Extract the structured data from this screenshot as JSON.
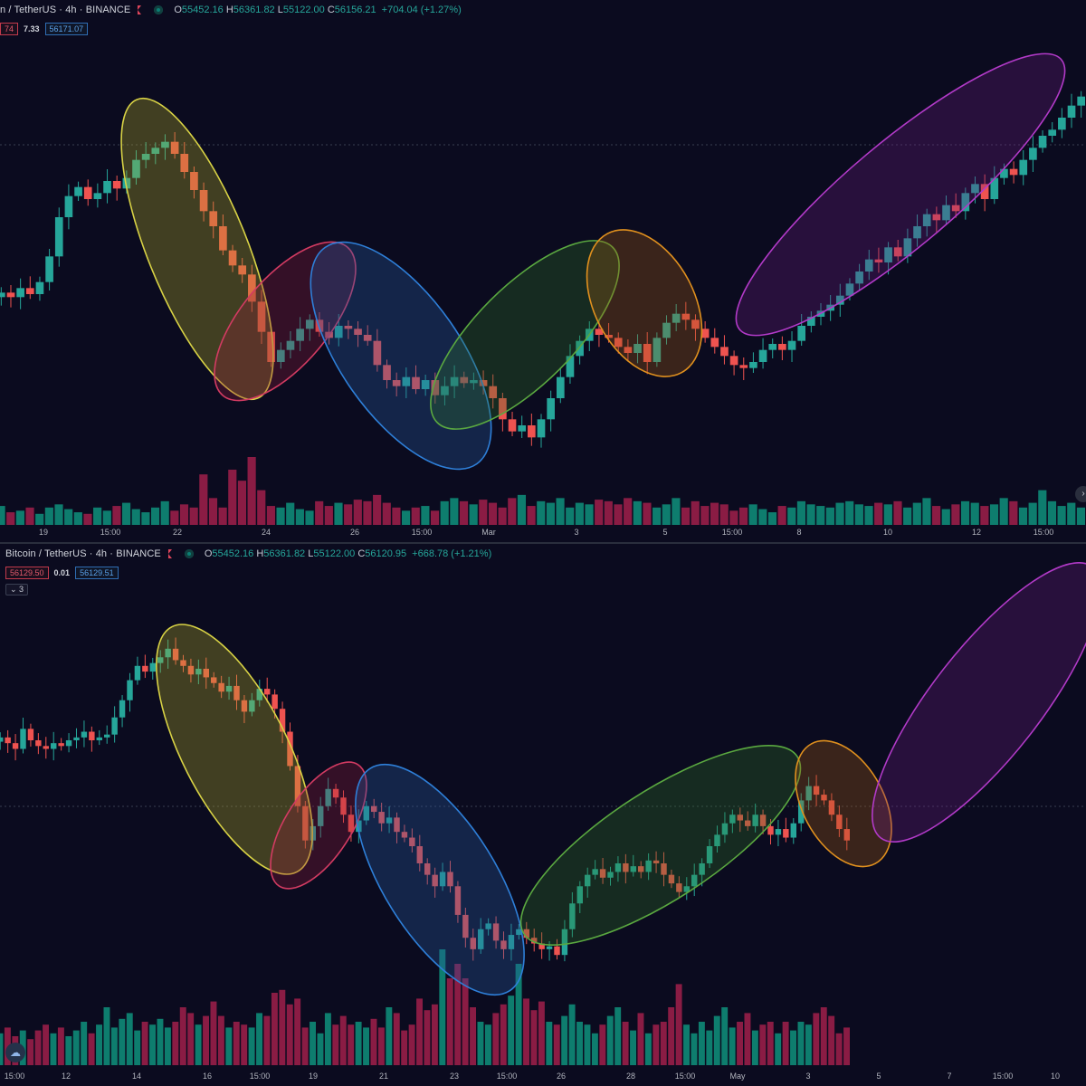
{
  "colors": {
    "up": "#26a69a",
    "down": "#ef5350",
    "vol_up": "#0e7d6e",
    "vol_down": "#8a1c44",
    "background": "#0b0b1f"
  },
  "top_pane": {
    "title": "n / TetherUS · 4h · BINANCE",
    "ohlc": {
      "o_label": "O",
      "o": "55452.16",
      "h_label": "H",
      "h": "56361.82",
      "l_label": "L",
      "l": "55122.00",
      "c_label": "C",
      "c": "56156.21",
      "change": "+704.04 (+1.27%)"
    },
    "bid": "74",
    "spread": "7.33",
    "ask": "56171.07",
    "x_ticks": [
      "19",
      "15:00",
      "22",
      "24",
      "26",
      "15:00",
      "Mar",
      "3",
      "5",
      "15:00",
      "8",
      "10",
      "12",
      "15:00"
    ]
  },
  "bottom_pane": {
    "title": "Bitcoin / TetherUS · 4h · BINANCE",
    "ohlc": {
      "o_label": "O",
      "o": "55452.16",
      "h_label": "H",
      "h": "56361.82",
      "l_label": "L",
      "l": "55122.00",
      "c_label": "C",
      "c": "56120.95",
      "change": "+668.78 (+1.21%)"
    },
    "bid": "56129.50",
    "spread": "0.01",
    "ask": "56129.51",
    "indicators_badge": "⌄ 3",
    "x_ticks": [
      "15:00",
      "12",
      "14",
      "16",
      "15:00",
      "19",
      "21",
      "23",
      "15:00",
      "26",
      "28",
      "15:00",
      "May",
      "3",
      "5",
      "7",
      "15:00",
      "10"
    ]
  },
  "icons": {
    "scroll_right": "chevron-right-icon",
    "cloud": "cloud-icon",
    "flag": "flag-icon",
    "status": "market-status-icon"
  },
  "chart_data": [
    {
      "type": "candlestick",
      "title": "n / TetherUS · 4h · BINANCE",
      "interval": "4h",
      "price_series": [
        55800,
        55650,
        55950,
        55750,
        56150,
        57000,
        58300,
        59000,
        59300,
        58900,
        59100,
        59500,
        59250,
        59600,
        60200,
        60400,
        60600,
        60800,
        60400,
        59800,
        59200,
        58500,
        58000,
        57200,
        56700,
        56400,
        55500,
        54500,
        53500,
        53900,
        54200,
        54600,
        54900,
        54500,
        54300,
        54700,
        54600,
        54400,
        54200,
        53400,
        52900,
        52700,
        53000,
        52600,
        52900,
        52400,
        52700,
        53000,
        52800,
        52900,
        52700,
        52300,
        51600,
        51200,
        51400,
        51000,
        51600,
        52300,
        53000,
        53700,
        54200,
        54600,
        54400,
        54300,
        54000,
        53800,
        54100,
        53500,
        54300,
        54800,
        55100,
        54900,
        54600,
        54300,
        54000,
        53700,
        53400,
        53300,
        53500,
        53900,
        54100,
        53900,
        54200,
        54700,
        55000,
        55200,
        55400,
        55700,
        56100,
        56500,
        56900,
        56800,
        57300,
        57000,
        57600,
        58000,
        58400,
        58200,
        58700,
        58500,
        59100,
        59400,
        58900,
        59600,
        59900,
        59700,
        60200,
        60600,
        61000,
        61200,
        61600,
        62000,
        62300
      ],
      "volume_series": [
        24,
        16,
        18,
        22,
        14,
        22,
        26,
        20,
        16,
        14,
        22,
        18,
        24,
        28,
        20,
        16,
        22,
        30,
        18,
        26,
        22,
        64,
        34,
        22,
        70,
        56,
        86,
        44,
        24,
        22,
        28,
        20,
        18,
        30,
        24,
        28,
        26,
        32,
        30,
        38,
        28,
        22,
        18,
        22,
        24,
        18,
        30,
        34,
        30,
        26,
        32,
        28,
        22,
        34,
        38,
        24,
        30,
        28,
        34,
        22,
        28,
        26,
        32,
        30,
        26,
        34,
        30,
        28,
        22,
        26,
        34,
        22,
        30,
        24,
        28,
        26,
        18,
        22,
        26,
        20,
        16,
        24,
        22,
        30,
        26,
        24,
        22,
        28,
        30,
        26,
        24,
        28,
        26,
        30,
        22,
        28,
        34,
        24,
        20,
        26,
        30,
        28,
        24,
        26,
        34,
        30,
        22,
        28,
        44,
        30,
        24,
        28,
        22
      ],
      "highlighted_moves": [
        "down",
        "up",
        "down",
        "up",
        "down",
        "up"
      ],
      "x_ticks": [
        "19",
        "15:00",
        "22",
        "24",
        "26",
        "15:00",
        "Mar",
        "3",
        "5",
        "15:00",
        "8",
        "10",
        "12",
        "15:00"
      ]
    },
    {
      "type": "candlestick",
      "title": "Bitcoin / TetherUS · 4h · BINANCE",
      "interval": "4h",
      "price_series": [
        58600,
        58400,
        58200,
        58900,
        58500,
        58300,
        58200,
        58400,
        58300,
        58500,
        58600,
        58800,
        58500,
        58600,
        58700,
        59300,
        59900,
        60600,
        61100,
        60900,
        61200,
        61400,
        61700,
        61300,
        61100,
        60800,
        61000,
        60700,
        60500,
        60200,
        60400,
        59900,
        59500,
        59900,
        60300,
        60100,
        59600,
        58800,
        57600,
        56200,
        55000,
        55500,
        56200,
        56800,
        56500,
        55900,
        55300,
        55700,
        56200,
        56000,
        55600,
        55800,
        55300,
        55100,
        54800,
        54200,
        53800,
        53400,
        53900,
        53400,
        52400,
        51600,
        51200,
        51900,
        52100,
        51500,
        51200,
        51700,
        51900,
        51600,
        51400,
        51200,
        51300,
        51000,
        51900,
        52800,
        53400,
        53800,
        54000,
        53700,
        53900,
        54200,
        53900,
        54100,
        53900,
        54300,
        54200,
        53800,
        53500,
        53200,
        53400,
        53800,
        54200,
        54800,
        55200,
        55600,
        55900,
        55700,
        55500,
        55900,
        55500,
        55200,
        55400,
        55100,
        55600,
        56400,
        56900,
        56600,
        56400,
        55900,
        55400,
        55000
      ],
      "volume_series": [
        22,
        26,
        20,
        24,
        18,
        24,
        28,
        22,
        26,
        20,
        24,
        30,
        22,
        28,
        40,
        26,
        32,
        36,
        24,
        30,
        28,
        32,
        26,
        30,
        40,
        36,
        28,
        34,
        44,
        34,
        26,
        30,
        28,
        26,
        36,
        34,
        50,
        52,
        42,
        46,
        26,
        30,
        22,
        36,
        28,
        34,
        28,
        30,
        26,
        32,
        26,
        40,
        36,
        24,
        28,
        46,
        38,
        42,
        80,
        60,
        70,
        60,
        40,
        30,
        28,
        36,
        42,
        48,
        70,
        46,
        38,
        44,
        30,
        28,
        34,
        42,
        30,
        28,
        22,
        28,
        34,
        40,
        30,
        24,
        36,
        22,
        28,
        30,
        40,
        56,
        28,
        22,
        30,
        24,
        34,
        40,
        26,
        30,
        36,
        24,
        28,
        30,
        22,
        30,
        24,
        30,
        28,
        36,
        40,
        34,
        22,
        26
      ],
      "highlighted_moves": [
        "down",
        "up",
        "down",
        "up",
        "down",
        "up"
      ],
      "x_ticks": [
        "15:00",
        "12",
        "14",
        "16",
        "15:00",
        "19",
        "21",
        "23",
        "15:00",
        "26",
        "28",
        "15:00",
        "May",
        "3",
        "5",
        "7",
        "15:00",
        "10"
      ]
    }
  ]
}
